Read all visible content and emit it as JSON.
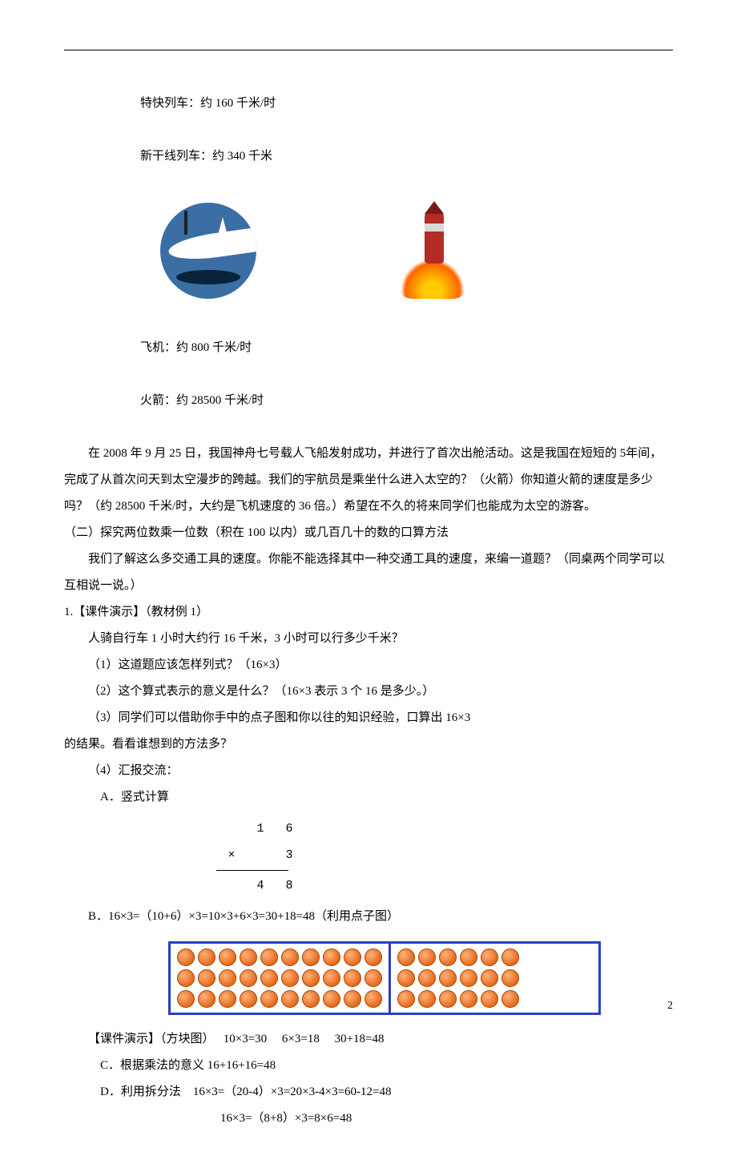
{
  "top": {
    "express_label": "特快列车：约 160 千米/时",
    "shinkansen_label": "新干线列车：约 340 千米",
    "plane_label": "飞机：约 800 千米/时",
    "rocket_label": "火箭：约 28500 千米/时"
  },
  "para1": "        在 2008 年 9 月 25 日，我国神舟七号载人飞船发射成功，并进行了首次出舱活动。这是我国在短短的 5年间，完成了从首次问天到太空漫步的跨越。我们的宇航员是乘坐什么进入太空的？（火箭）你知道火箭的速度是多少吗？（约 28500 千米/时，大约是飞机速度的 36 倍。）希望在不久的将来同学们也能成为太空的游客。",
  "section2_title": "（二）探究两位数乘一位数（积在 100 以内）或几百几十的数的口算方法",
  "para2": "        我们了解这么多交通工具的速度。你能不能选择其中一种交通工具的速度，来编一道题？（同桌两个同学可以互相说一说。）",
  "demo_title": "1.【课件演示】（教材例 1）",
  "word_problem": "人骑自行车 1 小时大约行 16 千米，3 小时可以行多少千米？",
  "q1": "（1）这道题应该怎样列式？（16×3）",
  "q2": "（2）这个算式表示的意义是什么？（16×3 表示 3 个 16 是多少。）",
  "q3": "（3）同学们可以借助你手中的点子图和你以往的知识经验，口算出 16×3",
  "q3b": "的结果。看看谁想到的方法多？",
  "q4": "（4）汇报交流：",
  "methodA": "A．竖式计算",
  "vertical": {
    "r1": [
      "",
      "1",
      "6"
    ],
    "r2": [
      "×",
      "",
      "3"
    ],
    "r3": [
      "",
      "4",
      "8"
    ]
  },
  "methodB": "B．16×3=（10+6）×3=10×3+6×3=30+18=48（利用点子图）",
  "dots": {
    "left_cols": 10,
    "right_cols": 6,
    "rows": 3,
    "border_color": "#2a3fbf",
    "dot_fill": "#e56a1c"
  },
  "demo_line": "【课件演示】（方块图）   10×3=30     6×3=18     30+18=48",
  "methodC": "C．根据乘法的意义 16+16+16=48",
  "methodD": "D．利用拆分法    16×3=（20-4）×3=20×3-4×3=60-12=48",
  "methodD2": "16×3=（8+8）×3=8×6=48",
  "page_number": "2"
}
